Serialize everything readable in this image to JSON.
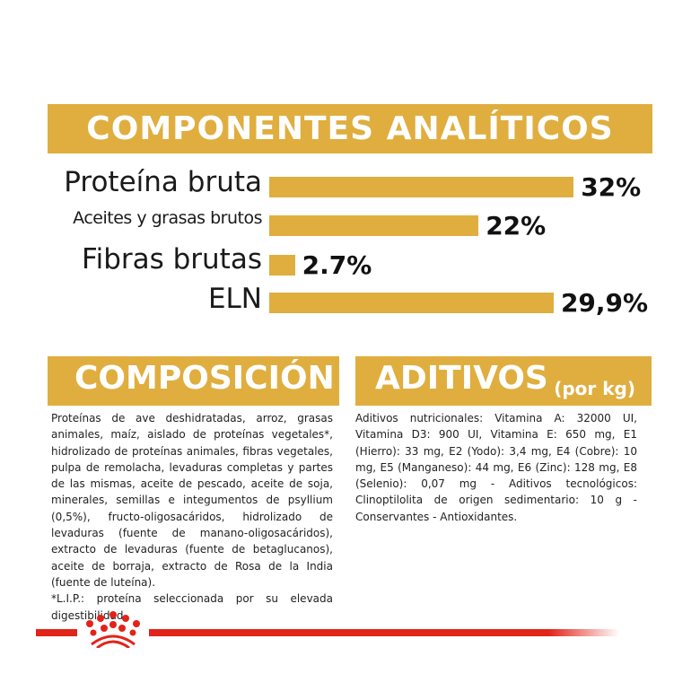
{
  "analytic": {
    "title": "COMPONENTES ANALÍTICOS",
    "rows": [
      {
        "label": "Proteína bruta",
        "value": "32%",
        "percent": 32
      },
      {
        "label": "Aceites y grasas brutos",
        "value": "22%",
        "percent": 22
      },
      {
        "label": "Fibras brutas",
        "value": "2.7%",
        "percent": 2.7
      },
      {
        "label": "ELN",
        "value": "29,9%",
        "percent": 29.9
      }
    ]
  },
  "composition": {
    "title": "COMPOSICIÓN",
    "text": "Proteínas de ave deshidratadas, arroz, grasas animales, maíz, aislado de proteínas vegetales*, hidrolizado de proteínas animales, fibras vegetales, pulpa de remolacha, levaduras completas y partes de las mismas, aceite de pescado, aceite de soja, minerales, semillas e integumentos de psyllium (0,5%), fructo-oligosacáridos, hidrolizado de levaduras (fuente de manano-oligosacáridos), extracto de levaduras (fuente de betaglucanos), aceite de borraja, extracto de Rosa de la India (fuente de luteína).",
    "note": "*L.I.P.: proteína seleccionada por su elevada digestibilidad."
  },
  "additives": {
    "title": "ADITIVOS",
    "subtitle": "(por kg)",
    "text": "Aditivos nutricionales: Vitamina A: 32000 UI, Vitamina D3: 900 UI, Vitamina E: 650 mg, E1 (Hierro): 33 mg, E2 (Yodo): 3,4 mg, E4 (Cobre): 10 mg, E5 (Manganeso): 44 mg, E6 (Zinc): 128 mg, E8 (Selenio): 0,07 mg - Aditivos tecnológicos: Clinoptilolita de origen sedimentario: 10 g - Conservantes - Antioxidantes."
  },
  "colors": {
    "accent": "#e0ae3f",
    "brand_red": "#e2231a"
  },
  "logo": "royal-canin-crown"
}
